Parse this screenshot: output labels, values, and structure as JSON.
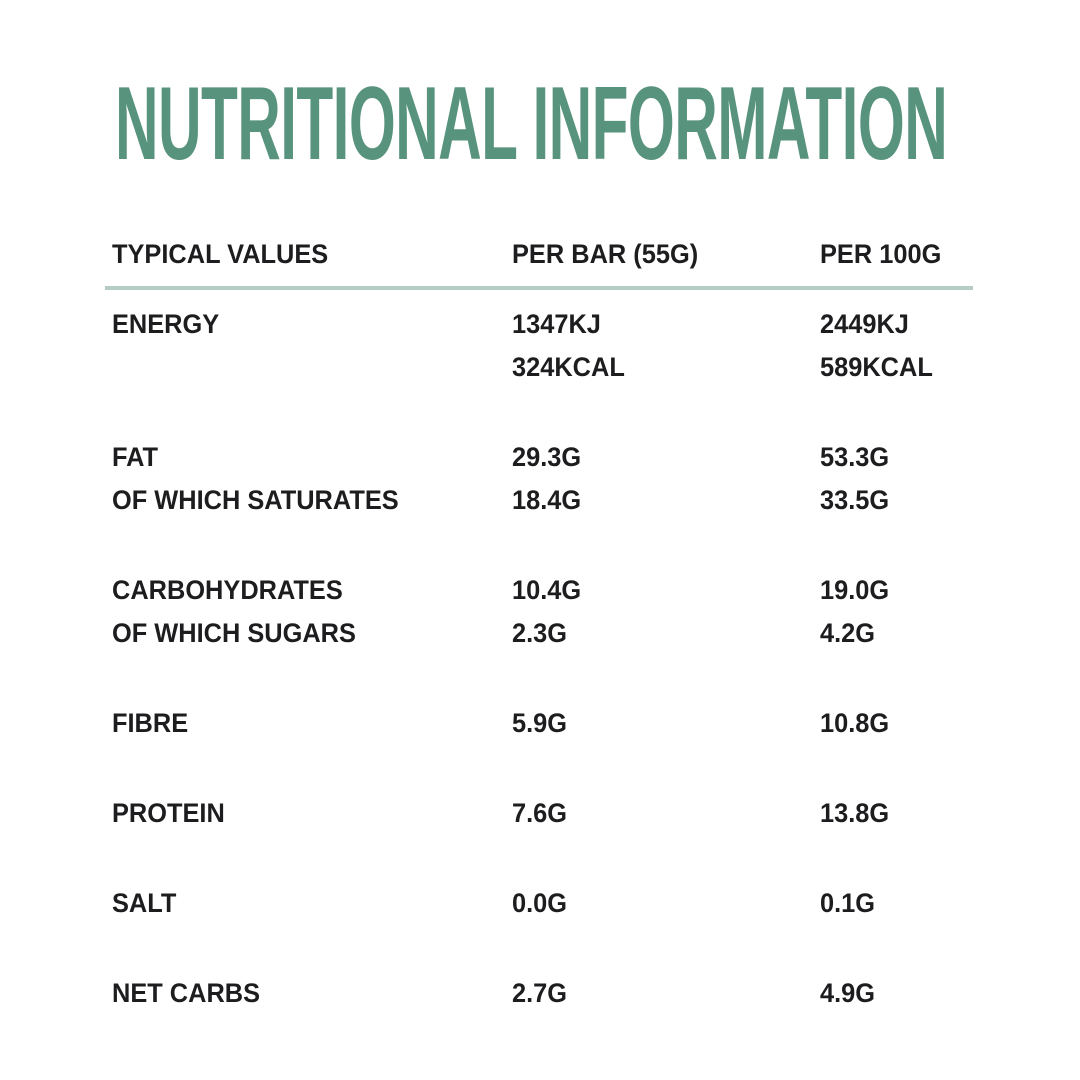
{
  "title": "NUTRITIONAL INFORMATION",
  "colors": {
    "title": "#58937e",
    "divider": "#b6cdc3",
    "text": "#1d1d1f",
    "background": "#ffffff"
  },
  "table": {
    "headers": [
      "TYPICAL VALUES",
      "PER BAR (55G)",
      "PER 100G"
    ],
    "groups": [
      {
        "rows": [
          {
            "label": "ENERGY",
            "per_bar": "1347KJ",
            "per_100g": "2449KJ"
          },
          {
            "label": "",
            "per_bar": "324KCAL",
            "per_100g": "589KCAL"
          }
        ]
      },
      {
        "rows": [
          {
            "label": "FAT",
            "per_bar": "29.3G",
            "per_100g": "53.3G"
          },
          {
            "label": "OF WHICH SATURATES",
            "per_bar": "18.4G",
            "per_100g": "33.5G"
          }
        ]
      },
      {
        "rows": [
          {
            "label": "CARBOHYDRATES",
            "per_bar": "10.4G",
            "per_100g": "19.0G"
          },
          {
            "label": "OF WHICH SUGARS",
            "per_bar": "2.3G",
            "per_100g": "4.2G"
          }
        ]
      },
      {
        "rows": [
          {
            "label": "FIBRE",
            "per_bar": "5.9G",
            "per_100g": "10.8G"
          }
        ]
      },
      {
        "rows": [
          {
            "label": "PROTEIN",
            "per_bar": "7.6G",
            "per_100g": "13.8G"
          }
        ]
      },
      {
        "rows": [
          {
            "label": "SALT",
            "per_bar": "0.0G",
            "per_100g": "0.1G"
          }
        ]
      },
      {
        "rows": [
          {
            "label": "NET CARBS",
            "per_bar": "2.7G",
            "per_100g": "4.9G"
          }
        ]
      }
    ]
  }
}
